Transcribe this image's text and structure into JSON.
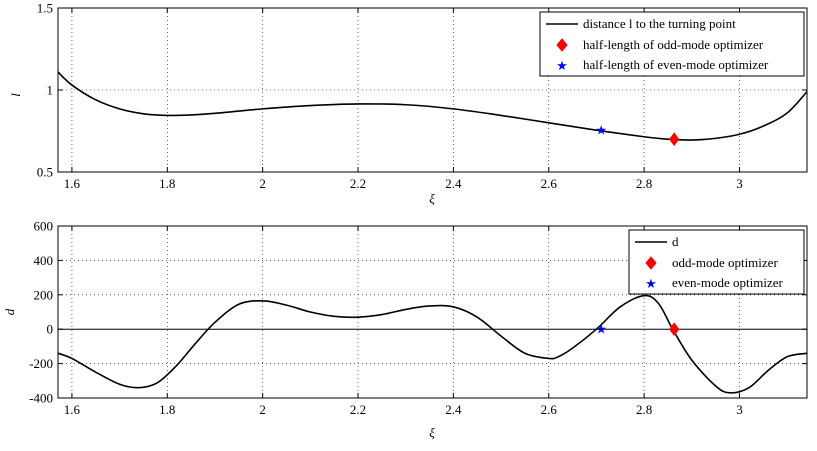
{
  "chart_data": [
    {
      "type": "line",
      "xlabel": "ξ",
      "ylabel": "l",
      "xlim": [
        1.5708,
        3.1416
      ],
      "ylim": [
        0.5,
        1.5
      ],
      "xticks": [
        1.6,
        1.8,
        2,
        2.2,
        2.4,
        2.6,
        2.8,
        3
      ],
      "xtick_labels": [
        "1.6",
        "1.8",
        "2",
        "2.2",
        "2.4",
        "2.6",
        "2.8",
        "3"
      ],
      "yticks": [
        0.5,
        1,
        1.5
      ],
      "ytick_labels": [
        "0.5",
        "1",
        "1.5"
      ],
      "grid": true,
      "legend_position": "top-right",
      "series": [
        {
          "name": "distance l to the turning point",
          "color": "#000000",
          "x": [
            1.5708,
            1.6,
            1.65,
            1.7,
            1.75,
            1.8,
            1.85,
            1.9,
            2.0,
            2.1,
            2.2,
            2.3,
            2.4,
            2.5,
            2.6,
            2.7,
            2.8,
            2.85,
            2.9,
            2.95,
            3.0,
            3.05,
            3.1,
            3.1416
          ],
          "y": [
            1.11,
            1.03,
            0.94,
            0.885,
            0.855,
            0.845,
            0.848,
            0.858,
            0.885,
            0.905,
            0.915,
            0.91,
            0.885,
            0.845,
            0.8,
            0.755,
            0.715,
            0.7,
            0.695,
            0.705,
            0.73,
            0.78,
            0.86,
            0.99
          ]
        }
      ],
      "markers": [
        {
          "name": "half-length of odd-mode optimizer",
          "shape": "diamond",
          "color": "#ff0000",
          "x": 2.863,
          "y": 0.7
        },
        {
          "name": "half-length of even-mode optimizer",
          "shape": "star",
          "color": "#0000ff",
          "x": 2.71,
          "y": 0.755
        }
      ]
    },
    {
      "type": "line",
      "xlabel": "ξ",
      "ylabel": "d",
      "xlim": [
        1.5708,
        3.1416
      ],
      "ylim": [
        -400,
        600
      ],
      "xticks": [
        1.6,
        1.8,
        2,
        2.2,
        2.4,
        2.6,
        2.8,
        3
      ],
      "xtick_labels": [
        "1.6",
        "1.8",
        "2",
        "2.2",
        "2.4",
        "2.6",
        "2.8",
        "3"
      ],
      "yticks": [
        -400,
        -200,
        0,
        200,
        400,
        600
      ],
      "ytick_labels": [
        "-400",
        "-200",
        "0",
        "200",
        "400",
        "600"
      ],
      "grid": true,
      "zero_line": true,
      "legend_position": "top-right",
      "series": [
        {
          "name": "d",
          "color": "#000000",
          "x": [
            1.5708,
            1.6,
            1.65,
            1.7,
            1.74,
            1.78,
            1.82,
            1.86,
            1.9,
            1.95,
            2.0,
            2.05,
            2.1,
            2.15,
            2.2,
            2.25,
            2.3,
            2.35,
            2.4,
            2.45,
            2.5,
            2.55,
            2.6,
            2.62,
            2.65,
            2.7,
            2.75,
            2.8,
            2.83,
            2.86,
            2.9,
            2.95,
            2.98,
            3.02,
            3.06,
            3.1,
            3.1416
          ],
          "y": [
            -140,
            -170,
            -250,
            -320,
            -340,
            -310,
            -210,
            -80,
            40,
            145,
            165,
            140,
            100,
            75,
            70,
            85,
            115,
            135,
            130,
            70,
            -40,
            -140,
            -170,
            -160,
            -110,
            0,
            130,
            195,
            150,
            0,
            -180,
            -330,
            -370,
            -340,
            -240,
            -160,
            -140
          ]
        }
      ],
      "markers": [
        {
          "name": "odd-mode optimizer",
          "shape": "diamond",
          "color": "#ff0000",
          "x": 2.863,
          "y": 0
        },
        {
          "name": "even-mode optimizer",
          "shape": "star",
          "color": "#0000ff",
          "x": 2.71,
          "y": 0
        }
      ]
    }
  ]
}
